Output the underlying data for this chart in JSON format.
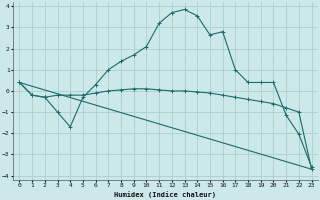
{
  "xlabel": "Humidex (Indice chaleur)",
  "background_color": "#cce8e8",
  "grid_color": "#aad0d0",
  "line_color": "#1a6b6b",
  "xlim": [
    -0.5,
    23.5
  ],
  "ylim": [
    -4.2,
    4.2
  ],
  "yticks": [
    -4,
    -3,
    -2,
    -1,
    0,
    1,
    2,
    3,
    4
  ],
  "xticks": [
    0,
    1,
    2,
    3,
    4,
    5,
    6,
    7,
    8,
    9,
    10,
    11,
    12,
    13,
    14,
    15,
    16,
    17,
    18,
    19,
    20,
    21,
    22,
    23
  ],
  "series1_marked": {
    "x": [
      0,
      1,
      2,
      3,
      4,
      5,
      6,
      7,
      8,
      9,
      10,
      11,
      12,
      13,
      14,
      15,
      16,
      17,
      18,
      19,
      20,
      21,
      22,
      23
    ],
    "y": [
      0.4,
      -0.2,
      -0.3,
      -0.2,
      -0.2,
      -0.2,
      -0.1,
      0.0,
      0.05,
      0.1,
      0.1,
      0.05,
      0.0,
      0.0,
      -0.05,
      -0.1,
      -0.2,
      -0.3,
      -0.4,
      -0.5,
      -0.6,
      -0.8,
      -1.0,
      -3.7
    ]
  },
  "series2_curve": {
    "x": [
      0,
      1,
      2,
      3,
      4,
      5,
      6,
      7,
      8,
      9,
      10,
      11,
      12,
      13,
      14,
      15,
      16,
      17,
      18,
      19,
      20,
      21,
      22,
      23
    ],
    "y": [
      0.4,
      -0.2,
      -0.3,
      -1.0,
      -1.7,
      -0.3,
      0.3,
      1.0,
      1.4,
      1.7,
      2.1,
      3.2,
      3.7,
      3.85,
      3.55,
      2.65,
      2.8,
      1.0,
      0.4,
      0.4,
      0.4,
      -1.15,
      -2.05,
      -3.6
    ]
  },
  "series3_straight": {
    "x": [
      0,
      23
    ],
    "y": [
      0.4,
      -3.7
    ]
  }
}
